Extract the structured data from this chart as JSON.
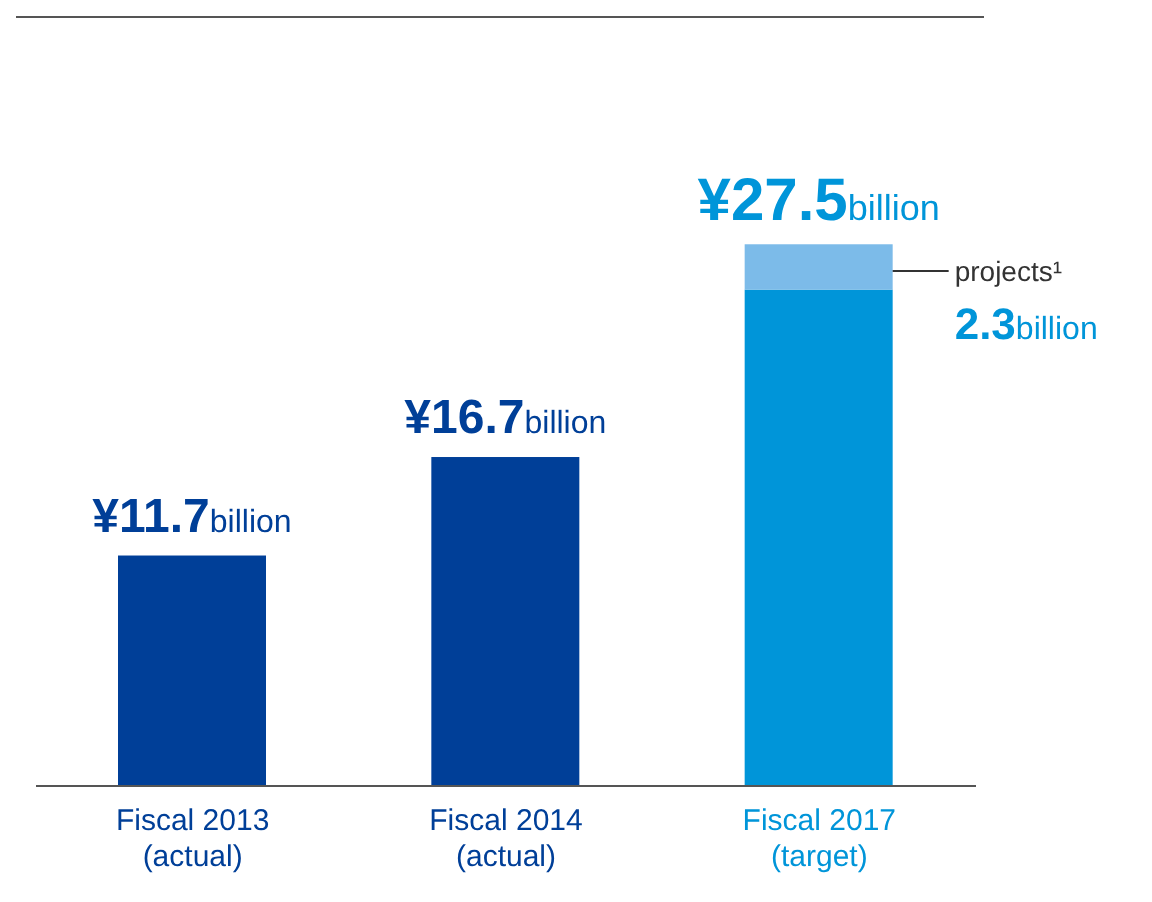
{
  "chart_data": {
    "type": "bar",
    "stacked": true,
    "categories": [
      "Fiscal 2013\n(actual)",
      "Fiscal 2014\n(actual)",
      "Fiscal 2017\n(target)"
    ],
    "series": [
      {
        "colors": [
          "#003f98",
          "#003f98",
          "#0095d9"
        ],
        "values": [
          11.7,
          16.7,
          25.2
        ]
      },
      {
        "name": "projects¹",
        "color": "#7cbbe9",
        "values": [
          null,
          null,
          2.3
        ],
        "value_labels": [
          null,
          null,
          "2.3billion"
        ]
      }
    ],
    "totals": [
      "¥11.7billion",
      "¥16.7billion",
      "¥27.5billion"
    ]
  }
}
